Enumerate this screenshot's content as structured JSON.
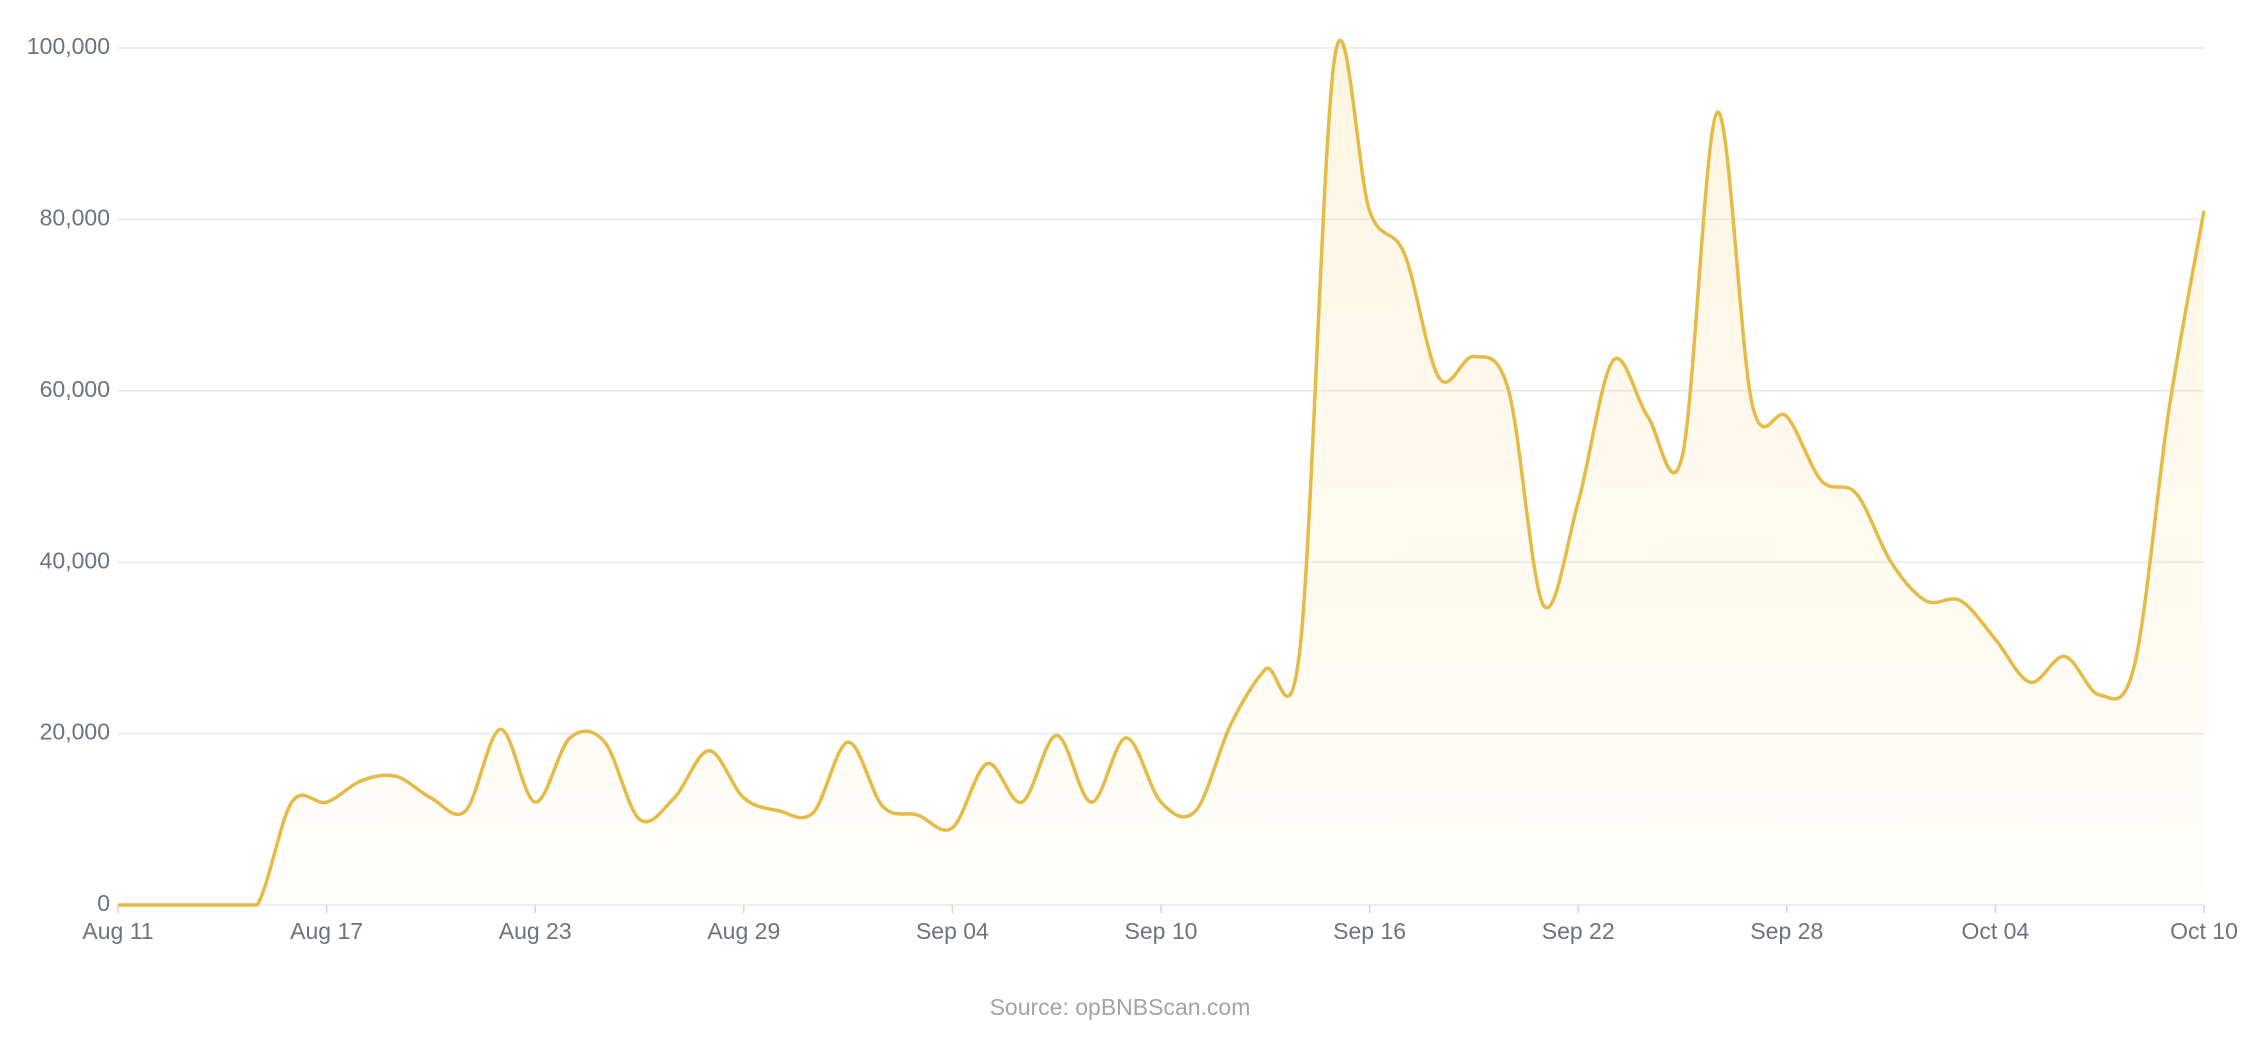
{
  "chart_data": {
    "type": "line",
    "source": "Source: opBNBScan.com",
    "categories": [
      "Aug 11",
      null,
      null,
      null,
      null,
      null,
      "Aug 17",
      null,
      null,
      null,
      null,
      null,
      "Aug 23",
      null,
      null,
      null,
      null,
      null,
      "Aug 29",
      null,
      null,
      null,
      null,
      null,
      "Sep 04",
      null,
      null,
      null,
      null,
      null,
      "Sep 10",
      null,
      null,
      null,
      null,
      null,
      "Sep 16",
      null,
      null,
      null,
      null,
      null,
      "Sep 22",
      null,
      null,
      null,
      null,
      null,
      "Sep 28",
      null,
      null,
      null,
      null,
      null,
      "Oct 04",
      null,
      null,
      null,
      null,
      null,
      "Oct 10"
    ],
    "series": [
      {
        "color": "#e6bb45",
        "values": [
          0,
          0,
          0,
          0,
          0,
          12000,
          12000,
          14500,
          15000,
          12500,
          11000,
          20500,
          12000,
          19500,
          19000,
          10000,
          12500,
          18000,
          12500,
          11000,
          10800,
          19000,
          11500,
          10500,
          9000,
          16500,
          12000,
          19800,
          12000,
          19500,
          12000,
          11000,
          21000,
          27500,
          30000,
          99000,
          81000,
          76000,
          61500,
          64000,
          60000,
          35000,
          47000,
          63500,
          57000,
          52500,
          92500,
          58500,
          57000,
          49500,
          48000,
          40000,
          35500,
          35500,
          31000,
          26000,
          29000,
          24500,
          28000,
          58000,
          81000
        ]
      }
    ],
    "ylim": [
      0,
      100000
    ],
    "yticks": [
      0,
      {
        "value": 20000,
        "label": "20,000"
      },
      {
        "value": 40000,
        "label": "40,000"
      },
      {
        "value": 60000,
        "label": "60,000"
      },
      {
        "value": 80000,
        "label": "80,000"
      },
      {
        "value": 100000,
        "label": "100,000"
      }
    ],
    "grid": true
  }
}
